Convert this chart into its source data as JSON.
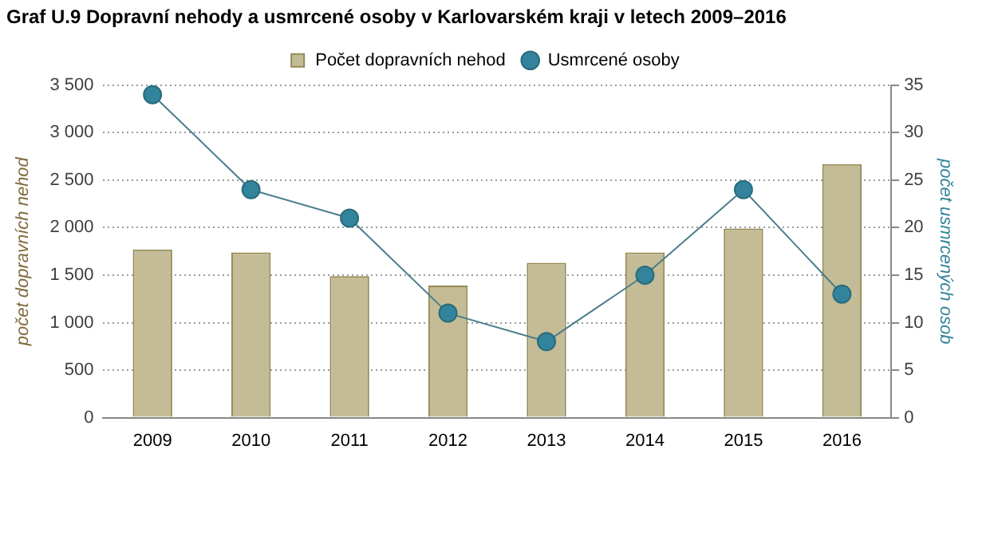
{
  "chart_data": {
    "type": "bar",
    "title": "Graf U.9 Dopravní nehody a usmrcené osoby v Karlovarském kraji v letech 2009–2016",
    "ylabel": "počet dopravních nehod",
    "y2label": "počet usmrcených osob",
    "categories": [
      "2009",
      "2010",
      "2011",
      "2012",
      "2013",
      "2014",
      "2015",
      "2016"
    ],
    "series": [
      {
        "name": "Počet dopravních nehod",
        "color": "#c4bc96",
        "values": [
          1770,
          1740,
          1490,
          1390,
          1630,
          1740,
          1990,
          2670
        ]
      },
      {
        "name": "Usmrcené osoby",
        "type": "line",
        "axis": "y2",
        "color": "#31849b",
        "values": [
          34,
          24,
          21,
          11,
          8,
          15,
          24,
          13
        ]
      }
    ],
    "ylim": [
      0,
      3500
    ],
    "yticks": [
      0,
      500,
      1000,
      1500,
      2000,
      2500,
      3000,
      3500
    ],
    "y2lim": [
      0,
      35
    ],
    "y2ticks": [
      0,
      5,
      10,
      15,
      20,
      25,
      30,
      35
    ],
    "grid": "y",
    "legend": "top",
    "marker": "circle"
  }
}
